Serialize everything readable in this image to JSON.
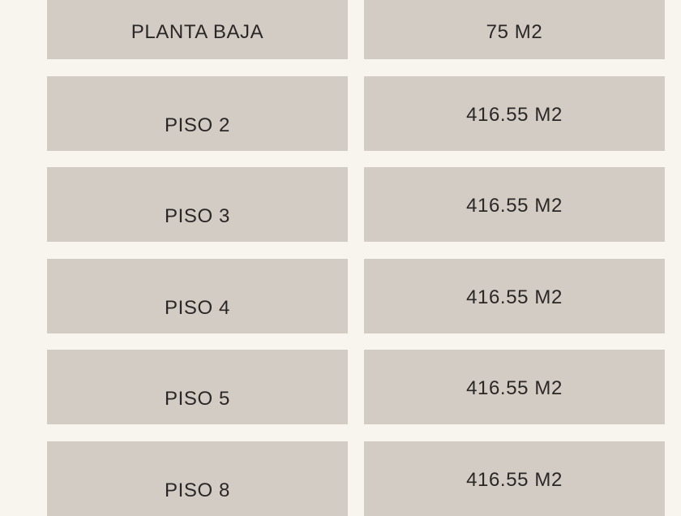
{
  "page": {
    "background_color": "#f8f4ee",
    "cell_color": "#d3ccc4",
    "text_color": "#2a2726"
  },
  "table": {
    "columns": [
      "floor",
      "area"
    ],
    "rows": [
      {
        "floor": "PLANTA BAJA",
        "area": "75 M2"
      },
      {
        "floor": "PISO 2",
        "area": "416.55 M2"
      },
      {
        "floor": "PISO 3",
        "area": "416.55 M2"
      },
      {
        "floor": "PISO 4",
        "area": "416.55 M2"
      },
      {
        "floor": "PISO 5",
        "area": "416.55 M2"
      },
      {
        "floor": "PISO 8",
        "area": "416.55 M2"
      }
    ]
  }
}
